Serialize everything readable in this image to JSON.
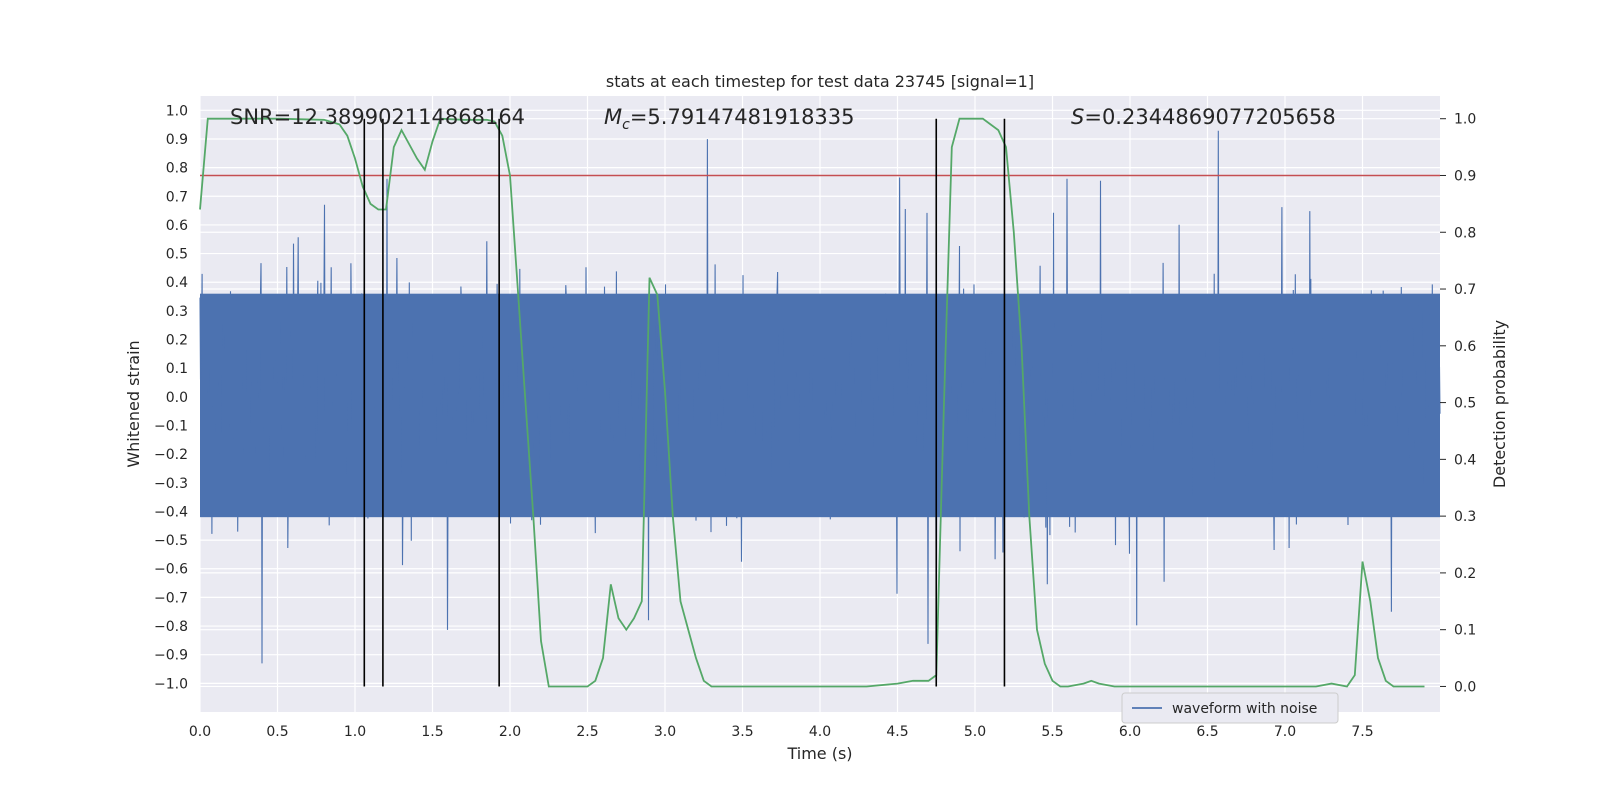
{
  "chart_data": {
    "type": "line",
    "title": "stats at each timestep for test data 23745 [signal=1]",
    "xlabel": "Time (s)",
    "ylabel": "Whitened strain",
    "y2label": "Detection probability",
    "xlim": [
      0,
      8
    ],
    "ylim": [
      -1.1,
      1.05
    ],
    "y2lim": [
      -0.045,
      1.04
    ],
    "xticks": [
      "0.0",
      "0.5",
      "1.0",
      "1.5",
      "2.0",
      "2.5",
      "3.0",
      "3.5",
      "4.0",
      "4.5",
      "5.0",
      "5.5",
      "6.0",
      "6.5",
      "7.0",
      "7.5"
    ],
    "yticks": [
      "1.0",
      "0.9",
      "0.8",
      "0.7",
      "0.6",
      "0.5",
      "0.4",
      "0.3",
      "0.2",
      "0.1",
      "0.0",
      "−0.1",
      "−0.2",
      "−0.3",
      "−0.4",
      "−0.5",
      "−0.6",
      "−0.7",
      "−0.8",
      "−0.9",
      "−1.0"
    ],
    "y2ticks": [
      "1.0",
      "0.9",
      "0.8",
      "0.7",
      "0.6",
      "0.5",
      "0.4",
      "0.3",
      "0.2",
      "0.1",
      "0.0"
    ],
    "annotations": {
      "snr": "SNR=12.389902114868164",
      "mc_symbol": "M",
      "mc_sub": "c",
      "mc_value": "=5.79147481918335",
      "s_symbol": "S",
      "s_value": "=0.2344869077205658"
    },
    "threshold": 0.9,
    "vlines": [
      1.06,
      1.18,
      1.93,
      4.75,
      5.19
    ],
    "legend": "waveform with noise",
    "colors": {
      "waveform": "#4c72b0",
      "probability": "#55a868",
      "threshold": "#c44e52",
      "vline": "#000000",
      "background": "#eaeaf2"
    },
    "series": [
      {
        "name": "waveform with noise",
        "axis": "left",
        "band_core": [
          -0.42,
          0.36
        ],
        "noise_sigma": 0.17,
        "peak_max": 0.93,
        "trough_min": -1.0
      },
      {
        "name": "Detection probability",
        "axis": "right",
        "x": [
          0.0,
          0.05,
          0.1,
          0.2,
          0.3,
          0.5,
          0.8,
          0.9,
          0.95,
          1.0,
          1.05,
          1.1,
          1.15,
          1.2,
          1.25,
          1.3,
          1.4,
          1.45,
          1.5,
          1.55,
          1.7,
          1.85,
          1.9,
          1.95,
          2.0,
          2.05,
          2.1,
          2.15,
          2.2,
          2.25,
          2.35,
          2.4,
          2.5,
          2.55,
          2.6,
          2.65,
          2.7,
          2.75,
          2.8,
          2.85,
          2.9,
          2.95,
          3.0,
          3.05,
          3.1,
          3.2,
          3.25,
          3.3,
          3.35,
          3.5,
          4.0,
          4.3,
          4.5,
          4.6,
          4.7,
          4.75,
          4.8,
          4.85,
          4.9,
          4.95,
          5.0,
          5.05,
          5.1,
          5.15,
          5.2,
          5.25,
          5.3,
          5.35,
          5.4,
          5.45,
          5.5,
          5.55,
          5.6,
          5.7,
          5.75,
          5.8,
          5.9,
          6.0,
          6.2,
          6.5,
          7.0,
          7.2,
          7.3,
          7.4,
          7.45,
          7.5,
          7.55,
          7.6,
          7.65,
          7.7,
          7.8,
          7.9
        ],
        "values": [
          0.84,
          1.0,
          1.0,
          1.0,
          1.0,
          1.0,
          0.998,
          0.99,
          0.97,
          0.93,
          0.88,
          0.85,
          0.84,
          0.84,
          0.95,
          0.98,
          0.93,
          0.91,
          0.96,
          1.0,
          0.998,
          0.998,
          0.995,
          0.97,
          0.9,
          0.7,
          0.5,
          0.3,
          0.08,
          0.0,
          0.0,
          0.0,
          0.0,
          0.01,
          0.05,
          0.18,
          0.12,
          0.1,
          0.12,
          0.15,
          0.72,
          0.69,
          0.52,
          0.3,
          0.15,
          0.05,
          0.01,
          0.0,
          0.0,
          0.0,
          0.0,
          0.0,
          0.005,
          0.01,
          0.01,
          0.02,
          0.5,
          0.95,
          1.0,
          1.0,
          1.0,
          1.0,
          0.99,
          0.98,
          0.95,
          0.8,
          0.6,
          0.3,
          0.1,
          0.04,
          0.01,
          0.0,
          0.0,
          0.005,
          0.01,
          0.005,
          0.0,
          0.0,
          0.0,
          0.0,
          0.0,
          0.0,
          0.005,
          0.0,
          0.02,
          0.22,
          0.15,
          0.05,
          0.01,
          0.0,
          0.0,
          0.0
        ]
      }
    ]
  }
}
